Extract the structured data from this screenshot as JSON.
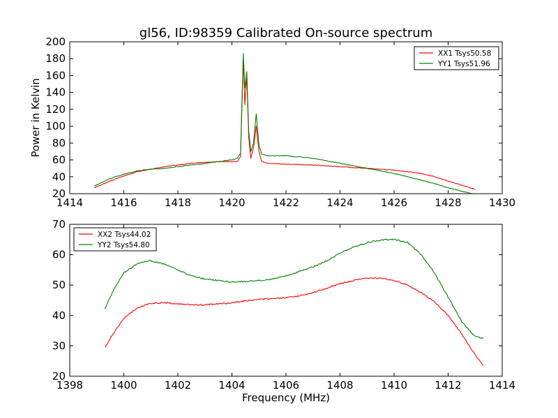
{
  "figure": {
    "title": "gl56, ID:98359 Calibrated On-source spectrum"
  },
  "chart_data": [
    {
      "type": "line",
      "title": "gl56, ID:98359 Calibrated On-source spectrum",
      "xlabel": "",
      "ylabel": "Power in Kelvin",
      "xlim": [
        1414,
        1430
      ],
      "ylim": [
        20,
        200
      ],
      "xticks": [
        1414,
        1416,
        1418,
        1420,
        1422,
        1424,
        1426,
        1428,
        1430
      ],
      "yticks": [
        20,
        40,
        60,
        80,
        100,
        120,
        140,
        160,
        180,
        200
      ],
      "legend_position": "top-right",
      "grid": false,
      "series": [
        {
          "name": "XX1 Tsys50.58",
          "color": "#ff0000",
          "x": [
            1414.9,
            1415.5,
            1416,
            1416.5,
            1417,
            1417.5,
            1418,
            1418.5,
            1419,
            1419.5,
            1420,
            1420.2,
            1420.32,
            1420.42,
            1420.48,
            1420.55,
            1420.62,
            1420.7,
            1420.8,
            1420.9,
            1421.0,
            1421.1,
            1421.3,
            1422,
            1423,
            1424,
            1425,
            1426,
            1427,
            1427.5,
            1428,
            1428.5,
            1429
          ],
          "values": [
            27,
            35,
            41,
            46,
            49,
            52,
            54,
            56,
            57,
            58,
            58,
            58,
            64,
            180,
            125,
            160,
            88,
            62,
            75,
            100,
            70,
            58,
            56,
            55,
            54,
            52,
            50,
            48,
            44,
            40,
            35,
            30,
            25
          ]
        },
        {
          "name": "YY1 Tsys51.96",
          "color": "#008000",
          "x": [
            1414.9,
            1415.5,
            1416,
            1416.5,
            1417,
            1417.5,
            1418,
            1418.5,
            1419,
            1419.5,
            1420,
            1420.2,
            1420.32,
            1420.42,
            1420.48,
            1420.55,
            1420.62,
            1420.7,
            1420.8,
            1420.9,
            1421.0,
            1421.1,
            1421.3,
            1422,
            1423,
            1424,
            1425,
            1426,
            1427,
            1427.5,
            1428,
            1428.5,
            1429
          ],
          "values": [
            29,
            38,
            43,
            47,
            49,
            50,
            52,
            54,
            56,
            58,
            60,
            62,
            68,
            186,
            145,
            165,
            95,
            70,
            80,
            115,
            78,
            67,
            65,
            65,
            62,
            56,
            50,
            44,
            36,
            32,
            27,
            23,
            19
          ]
        }
      ]
    },
    {
      "type": "line",
      "title": "",
      "xlabel": "Frequency (MHz)",
      "ylabel": "",
      "xlim": [
        1398,
        1414
      ],
      "ylim": [
        20,
        70
      ],
      "xticks": [
        1398,
        1400,
        1402,
        1404,
        1406,
        1408,
        1410,
        1412,
        1414
      ],
      "yticks": [
        20,
        30,
        40,
        50,
        60,
        70
      ],
      "legend_position": "top-left",
      "grid": false,
      "series": [
        {
          "name": "XX2 Tsys44.02",
          "color": "#ff0000",
          "x": [
            1399.3,
            1399.6,
            1400,
            1400.5,
            1401,
            1401.5,
            1402,
            1402.5,
            1403,
            1403.5,
            1404,
            1404.5,
            1405,
            1405.5,
            1406,
            1406.5,
            1407,
            1407.5,
            1408,
            1408.5,
            1409,
            1409.5,
            1410,
            1410.5,
            1411,
            1411.5,
            1412,
            1412.5,
            1413,
            1413.3
          ],
          "values": [
            29.5,
            34,
            39,
            42.5,
            44,
            44.2,
            43.8,
            43.5,
            43.5,
            43.8,
            44.2,
            44.8,
            45.3,
            45.5,
            45.8,
            46.5,
            47.5,
            49,
            50.5,
            51.5,
            52.3,
            52.3,
            51.5,
            50,
            47.5,
            44.5,
            40,
            34,
            27,
            23.5
          ]
        },
        {
          "name": "YY2 Tsys54.80",
          "color": "#008000",
          "x": [
            1399.3,
            1399.6,
            1400,
            1400.5,
            1401,
            1401.5,
            1402,
            1402.5,
            1403,
            1403.5,
            1404,
            1404.5,
            1405,
            1405.5,
            1406,
            1406.5,
            1407,
            1407.5,
            1408,
            1408.5,
            1409,
            1409.5,
            1410,
            1410.5,
            1411,
            1411.5,
            1412,
            1412.5,
            1413,
            1413.3
          ],
          "values": [
            42,
            48,
            54,
            57,
            58,
            57,
            55,
            53,
            52,
            51.5,
            51,
            51.2,
            51.5,
            52,
            53,
            54.5,
            56,
            58,
            60.5,
            62.5,
            64,
            64.8,
            65,
            64,
            60,
            54,
            46,
            38,
            33,
            32.5
          ]
        }
      ]
    }
  ]
}
